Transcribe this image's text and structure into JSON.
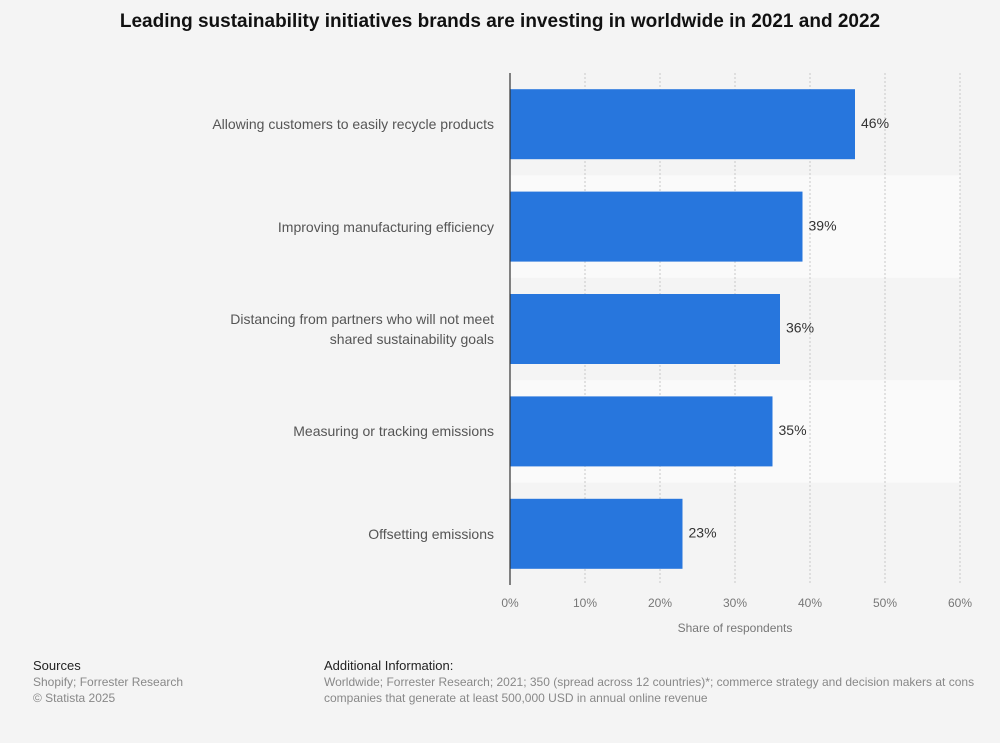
{
  "chart_data": {
    "type": "bar",
    "orientation": "horizontal",
    "title": "Leading sustainability initiatives brands are investing in worldwide in 2021 and 2022",
    "categories": [
      "Allowing customers to easily recycle products",
      "Improving manufacturing efficiency",
      "Distancing from partners who will not meet\nshared sustainability goals",
      "Measuring or tracking emissions",
      "Offsetting emissions"
    ],
    "values": [
      46,
      39,
      36,
      35,
      23
    ],
    "value_labels": [
      "46%",
      "39%",
      "36%",
      "35%",
      "23%"
    ],
    "color": "#2776dd",
    "xlim": [
      0,
      60
    ],
    "xticks": [
      {
        "value": 0,
        "label": "0%"
      },
      {
        "value": 10,
        "label": "10%"
      },
      {
        "value": 20,
        "label": "20%"
      },
      {
        "value": 30,
        "label": "30%"
      },
      {
        "value": 40,
        "label": "40%"
      },
      {
        "value": 50,
        "label": "50%"
      },
      {
        "value": 60,
        "label": "60%"
      }
    ],
    "xlabel": "Share of respondents",
    "grid": true
  },
  "footer": {
    "sources_title": "Sources",
    "sources": "Shopify; Forrester Research",
    "copyright": "© Statista 2025",
    "info_title": "Additional Information:",
    "info_lines": [
      "Worldwide; Forrester Research; 2021; 350 (spread across 12 countries)*; commerce strategy and decision makers at cons",
      "companies that generate at least 500,000 USD in annual online revenue"
    ]
  }
}
